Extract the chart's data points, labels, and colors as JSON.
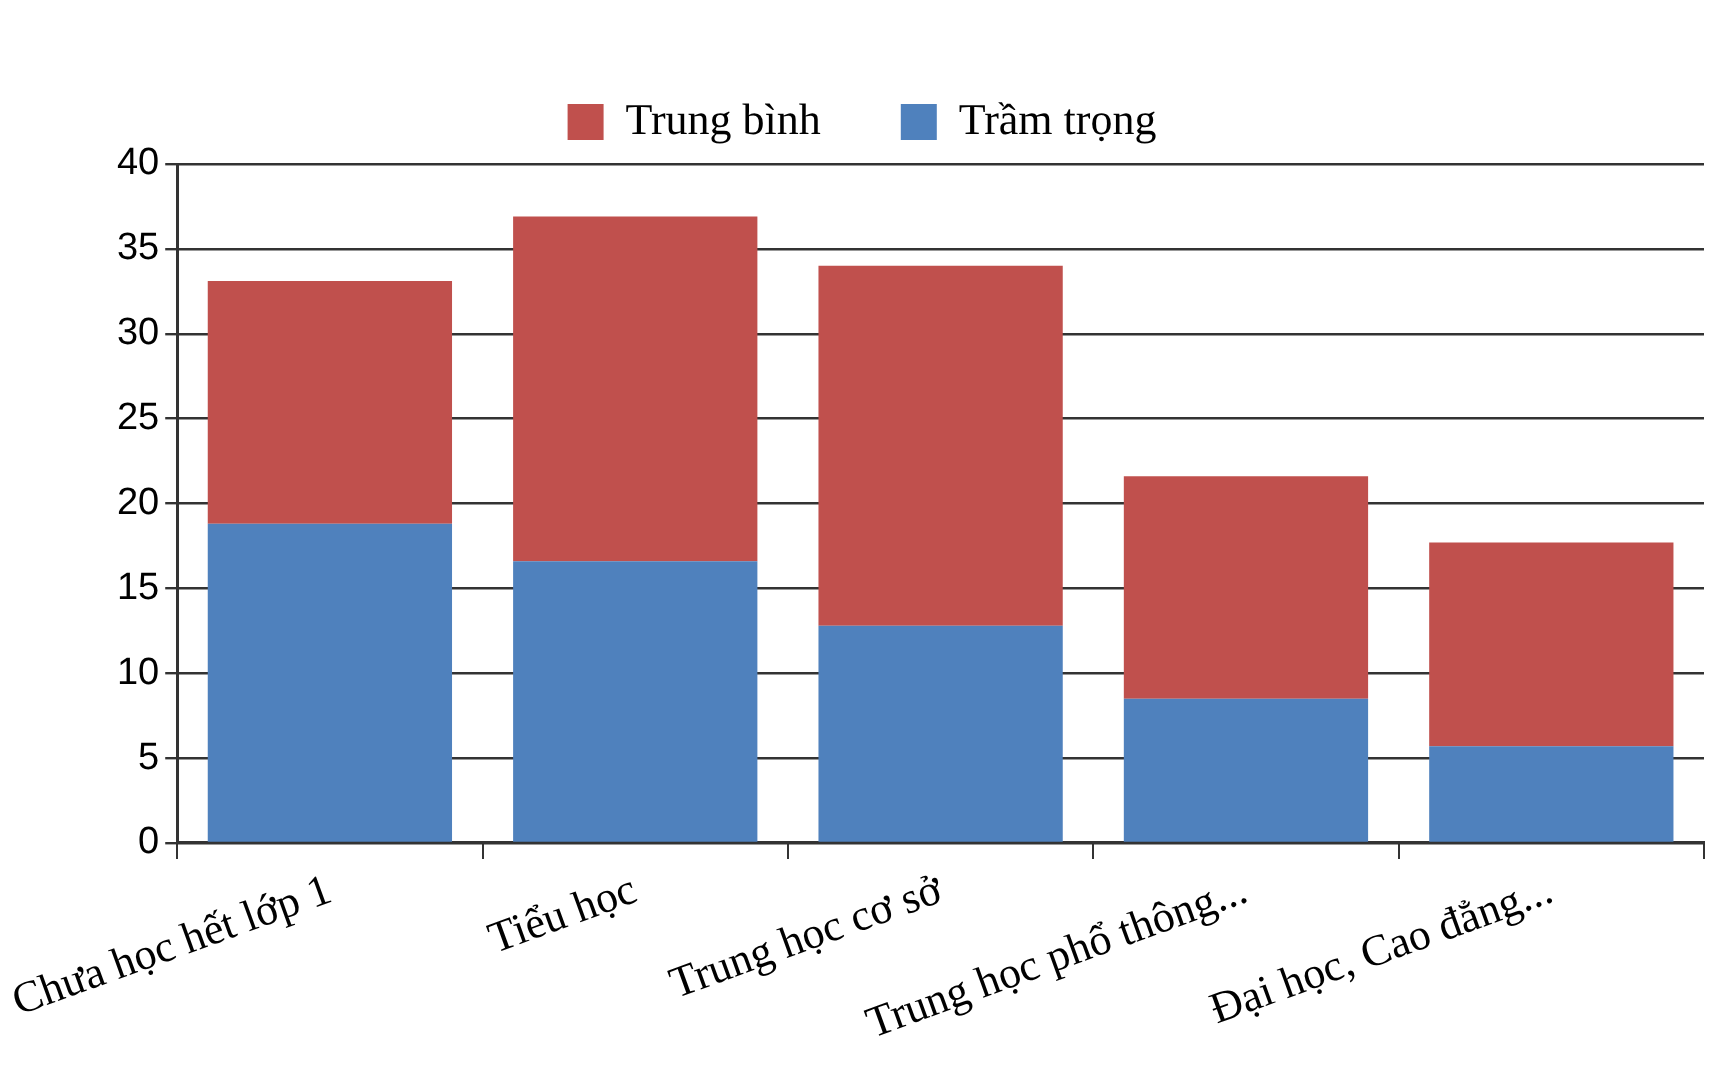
{
  "chart_data": {
    "type": "bar",
    "stacked": true,
    "categories": [
      "Chưa học hết lớp 1",
      "Tiểu học",
      "Trung học cơ sở",
      "Trung học phổ thông...",
      "Đại học, Cao đẳng..."
    ],
    "series": [
      {
        "name": "Trầm trọng",
        "color": "#4f81bd",
        "values": [
          18.8,
          16.6,
          12.8,
          8.5,
          5.7
        ]
      },
      {
        "name": "Trung bình",
        "color": "#c0504d",
        "values": [
          14.3,
          20.3,
          21.2,
          13.1,
          12.0
        ]
      }
    ],
    "ylim": [
      0,
      40
    ],
    "yticks": [
      0,
      5,
      10,
      15,
      20,
      25,
      30,
      35,
      40
    ],
    "grid": "y",
    "legend": "top"
  }
}
